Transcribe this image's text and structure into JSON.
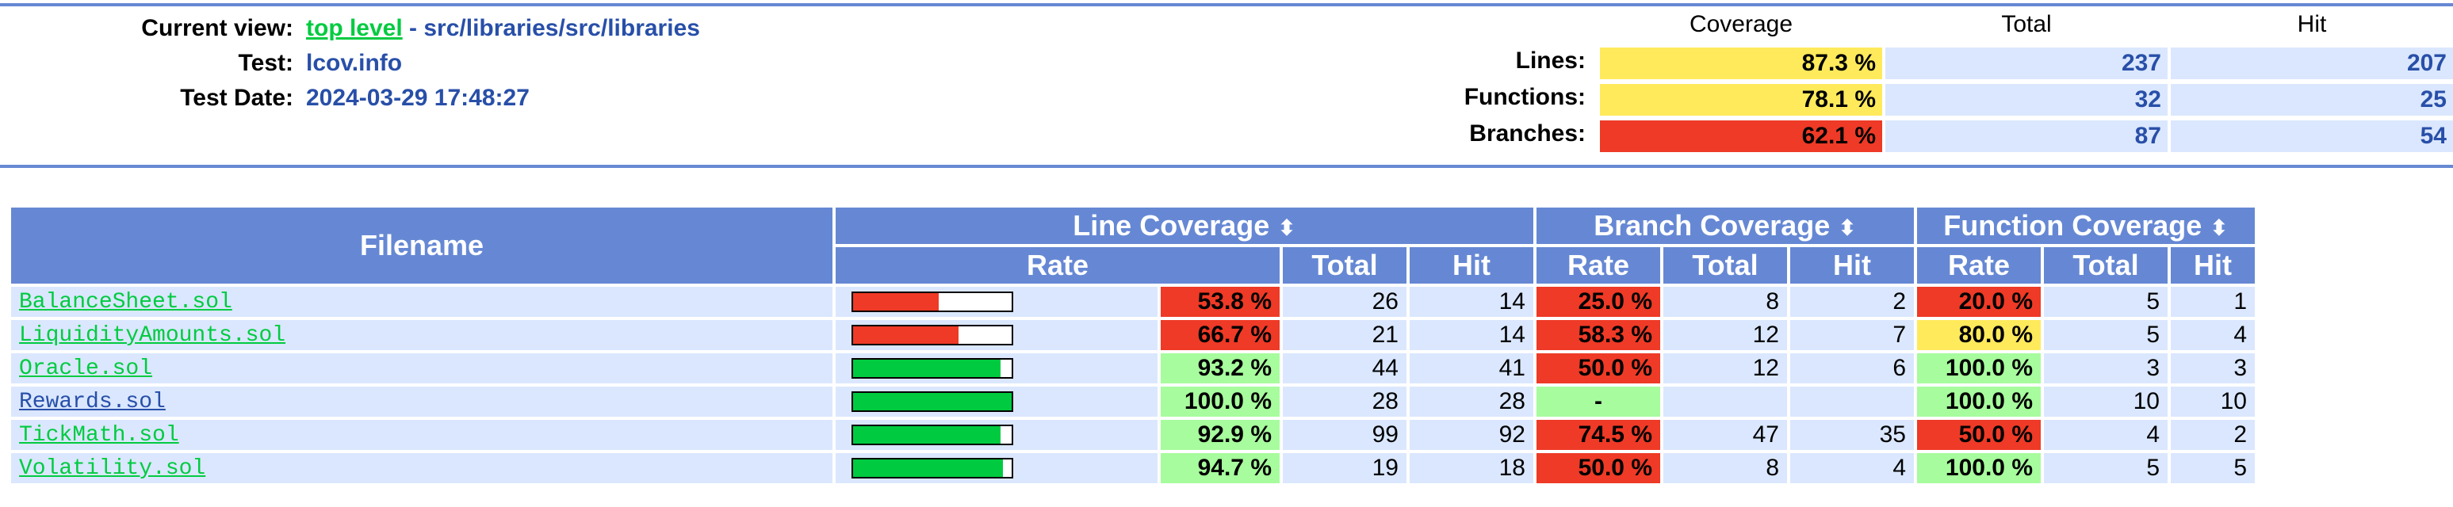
{
  "colors": {
    "header_bg": "#6688d4",
    "row_bg": "#dae7fe",
    "link_green": "#00cb40",
    "link_blue": "#284fa8",
    "rate_high": "#a7fc9d",
    "rate_med": "#ffea5c",
    "rate_low": "#ee3a26",
    "bar_green": "#00cb40",
    "bar_red": "#ee3a26"
  },
  "header": {
    "current_view_label": "Current view:",
    "top_level_link": "top level",
    "path": "- src/libraries/src/libraries",
    "test_label": "Test:",
    "test_value": "lcov.info",
    "date_label": "Test Date:",
    "date_value": "2024-03-29 17:48:27"
  },
  "summary": {
    "col_coverage": "Coverage",
    "col_total": "Total",
    "col_hit": "Hit",
    "rows": [
      {
        "label": "Lines:",
        "coverage": "87.3 %",
        "level": "med",
        "total": "237",
        "hit": "207"
      },
      {
        "label": "Functions:",
        "coverage": "78.1 %",
        "level": "med",
        "total": "32",
        "hit": "25"
      },
      {
        "label": "Branches:",
        "coverage": "62.1 %",
        "level": "low",
        "total": "87",
        "hit": "54"
      }
    ]
  },
  "table": {
    "filename_header": "Filename",
    "line_cov_header": "Line Coverage",
    "branch_cov_header": "Branch Coverage",
    "func_cov_header": "Function Coverage",
    "sort_icon": "⬍",
    "rate_header": "Rate",
    "total_header": "Total",
    "hit_header": "Hit",
    "rows": [
      {
        "file": "BalanceSheet.sol",
        "link_color": "green",
        "bar_pct": 53.8,
        "line_rate": "53.8 %",
        "line_level": "low",
        "line_total": "26",
        "line_hit": "14",
        "branch_rate": "25.0 %",
        "branch_level": "low",
        "branch_total": "8",
        "branch_hit": "2",
        "func_rate": "20.0 %",
        "func_level": "low",
        "func_total": "5",
        "func_hit": "1"
      },
      {
        "file": "LiquidityAmounts.sol",
        "link_color": "green",
        "bar_pct": 66.7,
        "line_rate": "66.7 %",
        "line_level": "low",
        "line_total": "21",
        "line_hit": "14",
        "branch_rate": "58.3 %",
        "branch_level": "low",
        "branch_total": "12",
        "branch_hit": "7",
        "func_rate": "80.0 %",
        "func_level": "med",
        "func_total": "5",
        "func_hit": "4"
      },
      {
        "file": "Oracle.sol",
        "link_color": "green",
        "bar_pct": 93.2,
        "line_rate": "93.2 %",
        "line_level": "high",
        "line_total": "44",
        "line_hit": "41",
        "branch_rate": "50.0 %",
        "branch_level": "low",
        "branch_total": "12",
        "branch_hit": "6",
        "func_rate": "100.0 %",
        "func_level": "high",
        "func_total": "3",
        "func_hit": "3"
      },
      {
        "file": "Rewards.sol",
        "link_color": "blue",
        "bar_pct": 100.0,
        "line_rate": "100.0 %",
        "line_level": "high",
        "line_total": "28",
        "line_hit": "28",
        "branch_rate": "-",
        "branch_level": "high",
        "branch_total": "",
        "branch_hit": "",
        "func_rate": "100.0 %",
        "func_level": "high",
        "func_total": "10",
        "func_hit": "10"
      },
      {
        "file": "TickMath.sol",
        "link_color": "green",
        "bar_pct": 92.9,
        "line_rate": "92.9 %",
        "line_level": "high",
        "line_total": "99",
        "line_hit": "92",
        "branch_rate": "74.5 %",
        "branch_level": "low",
        "branch_total": "47",
        "branch_hit": "35",
        "func_rate": "50.0 %",
        "func_level": "low",
        "func_total": "4",
        "func_hit": "2"
      },
      {
        "file": "Volatility.sol",
        "link_color": "green",
        "bar_pct": 94.7,
        "line_rate": "94.7 %",
        "line_level": "high",
        "line_total": "19",
        "line_hit": "18",
        "branch_rate": "50.0 %",
        "branch_level": "low",
        "branch_total": "8",
        "branch_hit": "4",
        "func_rate": "100.0 %",
        "func_level": "high",
        "func_total": "5",
        "func_hit": "5"
      }
    ]
  }
}
